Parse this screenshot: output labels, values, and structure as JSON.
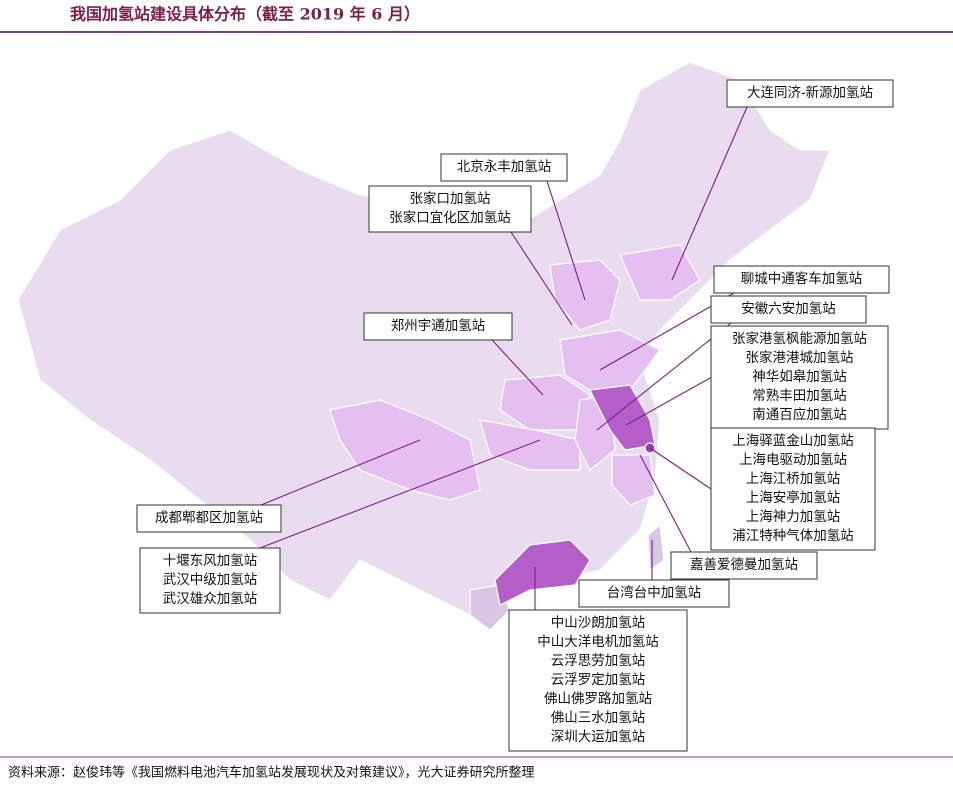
{
  "title": "我国加氢站建设具体分布（截至 2019 年 6 月）",
  "source": "资料来源：赵俊玮等《我国燃料电池汽车加氢站发展现状及对策建议》，光大证券研究所整理",
  "callouts": [
    {
      "lines": [
        "大连同济-新源加氢站"
      ]
    },
    {
      "lines": [
        "北京永丰加氢站"
      ]
    },
    {
      "lines": [
        "张家口加氢站",
        "张家口宜化区加氢站"
      ]
    },
    {
      "lines": [
        "聊城中通客车加氢站"
      ]
    },
    {
      "lines": [
        "安徽六安加氢站"
      ]
    },
    {
      "lines": [
        "张家港氢枫能源加氢站",
        "张家港港城加氢站",
        "神华如皋加氢站",
        "常熟丰田加氢站",
        "南通百应加氢站"
      ]
    },
    {
      "lines": [
        "郑州宇通加氢站"
      ]
    },
    {
      "lines": [
        "上海驿蓝金山加氢站",
        "上海电驱动加氢站",
        "上海江桥加氢站",
        "上海安亭加氢站",
        "上海神力加氢站",
        "浦江特种气体加氢站"
      ]
    },
    {
      "lines": [
        "成都郫都区加氢站"
      ]
    },
    {
      "lines": [
        "十堰东风加氢站",
        "武汉中级加氢站",
        "武汉雄众加氢站"
      ]
    },
    {
      "lines": [
        "嘉善爱德曼加氢站"
      ]
    },
    {
      "lines": [
        "台湾台中加氢站"
      ]
    },
    {
      "lines": [
        "中山沙朗加氢站",
        "中山大洋电机加氢站",
        "云浮思劳加氢站",
        "云浮罗定加氢站",
        "佛山佛罗路加氢站",
        "佛山三水加氢站",
        "深圳大运加氢站"
      ]
    }
  ]
}
